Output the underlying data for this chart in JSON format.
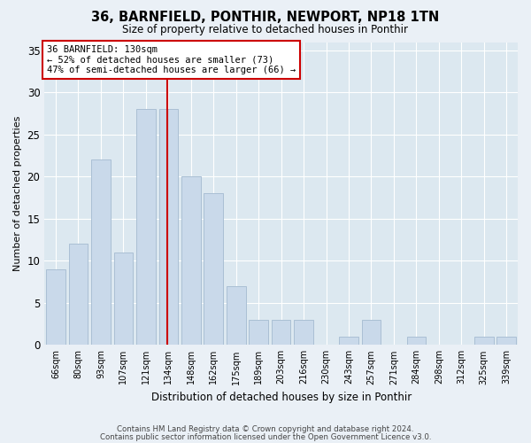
{
  "title": "36, BARNFIELD, PONTHIR, NEWPORT, NP18 1TN",
  "subtitle": "Size of property relative to detached houses in Ponthir",
  "xlabel": "Distribution of detached houses by size in Ponthir",
  "ylabel": "Number of detached properties",
  "categories": [
    "66sqm",
    "80sqm",
    "93sqm",
    "107sqm",
    "121sqm",
    "134sqm",
    "148sqm",
    "162sqm",
    "175sqm",
    "189sqm",
    "203sqm",
    "216sqm",
    "230sqm",
    "243sqm",
    "257sqm",
    "271sqm",
    "284sqm",
    "298sqm",
    "312sqm",
    "325sqm",
    "339sqm"
  ],
  "values": [
    9,
    12,
    22,
    11,
    28,
    28,
    20,
    18,
    7,
    3,
    3,
    3,
    0,
    1,
    3,
    0,
    1,
    0,
    0,
    1,
    1
  ],
  "bar_color": "#c9d9ea",
  "bar_edge_color": "#aabfd4",
  "vline_x_index": 5,
  "vline_color": "#cc0000",
  "annotation_text": "36 BARNFIELD: 130sqm\n← 52% of detached houses are smaller (73)\n47% of semi-detached houses are larger (66) →",
  "annotation_box_facecolor": "#ffffff",
  "annotation_box_edgecolor": "#cc0000",
  "ylim": [
    0,
    36
  ],
  "yticks": [
    0,
    5,
    10,
    15,
    20,
    25,
    30,
    35
  ],
  "bg_color": "#dce8f0",
  "grid_color": "#ffffff",
  "fig_bg_color": "#eaf0f6",
  "footer_line1": "Contains HM Land Registry data © Crown copyright and database right 2024.",
  "footer_line2": "Contains public sector information licensed under the Open Government Licence v3.0."
}
